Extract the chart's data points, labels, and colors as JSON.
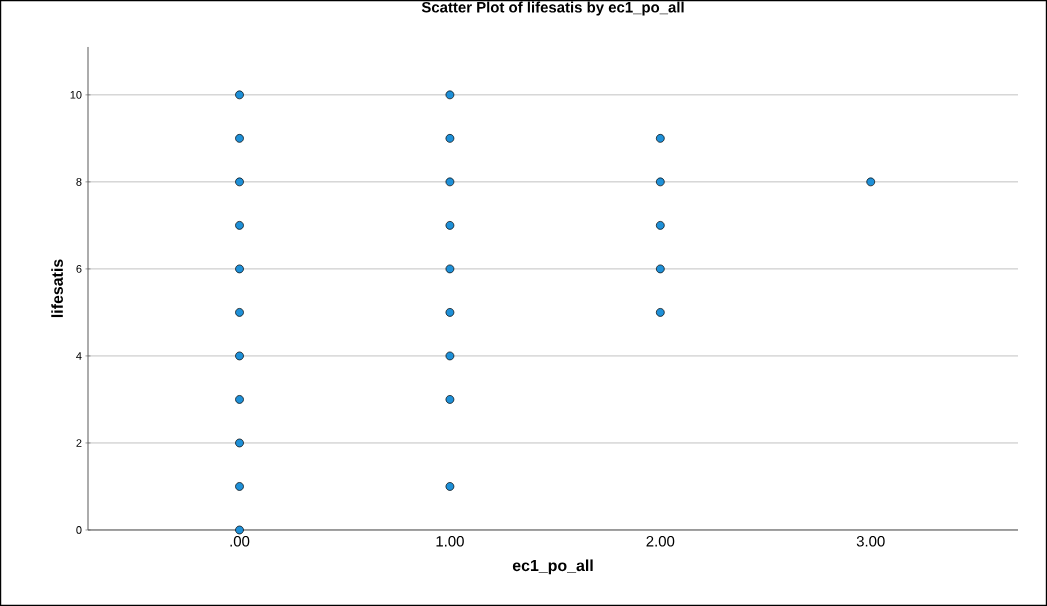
{
  "chart_data": {
    "type": "scatter",
    "title": "Scatter Plot of lifesatis by ec1_po_all",
    "xlabel": "ec1_po_all",
    "ylabel": "lifesatis",
    "x": [
      0,
      0,
      0,
      0,
      0,
      0,
      0,
      0,
      0,
      0,
      0,
      1,
      1,
      1,
      1,
      1,
      1,
      1,
      1,
      1,
      2,
      2,
      2,
      2,
      2,
      3
    ],
    "values": [
      0,
      1,
      2,
      3,
      4,
      5,
      6,
      7,
      8,
      9,
      10,
      1,
      3,
      4,
      5,
      6,
      7,
      8,
      9,
      10,
      5,
      6,
      7,
      8,
      9,
      8
    ],
    "color": "#1e90d8",
    "xlim": [
      -0.72,
      3.7
    ],
    "ylim": [
      0,
      11.1
    ],
    "xticks": [
      {
        "value": 0,
        "label": ".00"
      },
      {
        "value": 1,
        "label": "1.00"
      },
      {
        "value": 2,
        "label": "2.00"
      },
      {
        "value": 3,
        "label": "3.00"
      }
    ],
    "yticks": [
      0,
      2,
      4,
      6,
      8,
      10
    ],
    "grid": "y",
    "marker": "circle"
  }
}
